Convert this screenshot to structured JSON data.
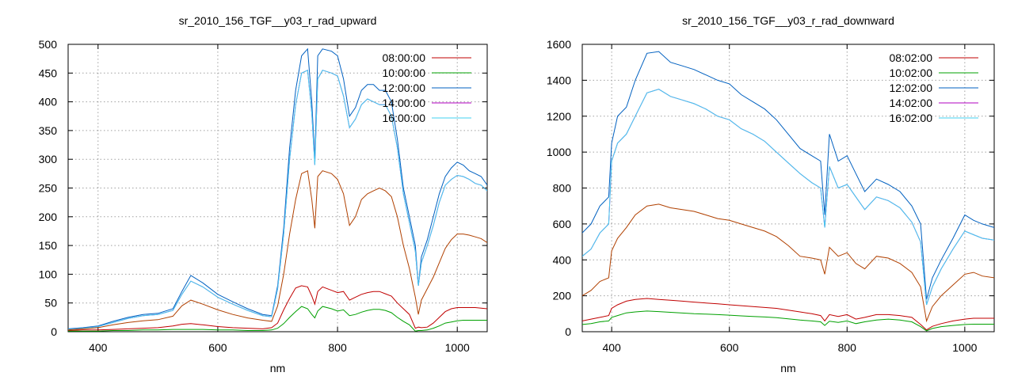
{
  "chart_data": [
    {
      "type": "line",
      "title": "sr_2010_156_TGF__y03_r_rad_upward",
      "xlabel": "nm",
      "ylabel": "",
      "xlim": [
        350,
        1050
      ],
      "ylim": [
        0,
        500
      ],
      "xticks": [
        400,
        600,
        800,
        1000
      ],
      "yticks": [
        0,
        50,
        100,
        150,
        200,
        250,
        300,
        350,
        400,
        450,
        500
      ],
      "grid": true,
      "legend_position": "top-right",
      "x": [
        350,
        375,
        400,
        425,
        450,
        475,
        500,
        525,
        540,
        555,
        575,
        600,
        625,
        650,
        675,
        690,
        700,
        710,
        720,
        730,
        740,
        750,
        757,
        762,
        767,
        775,
        790,
        800,
        810,
        820,
        830,
        840,
        850,
        860,
        870,
        880,
        890,
        900,
        910,
        920,
        930,
        935,
        940,
        950,
        960,
        970,
        980,
        990,
        1000,
        1010,
        1020,
        1030,
        1040,
        1050
      ],
      "series": [
        {
          "name": "08:00:00",
          "color": "#c00000",
          "values": [
            2,
            3,
            3,
            4,
            5,
            6,
            7,
            10,
            13,
            14,
            12,
            9,
            7,
            6,
            5,
            7,
            15,
            38,
            58,
            76,
            80,
            78,
            62,
            48,
            70,
            78,
            72,
            68,
            70,
            55,
            60,
            65,
            68,
            70,
            70,
            66,
            62,
            50,
            40,
            30,
            6,
            8,
            7,
            8,
            15,
            25,
            35,
            40,
            42,
            42,
            42,
            42,
            41,
            40
          ]
        },
        {
          "name": "10:00:00",
          "color": "#00a000",
          "values": [
            1,
            1,
            1,
            2,
            2,
            3,
            3,
            4,
            4,
            4,
            4,
            3,
            3,
            2,
            2,
            3,
            6,
            14,
            25,
            35,
            44,
            40,
            30,
            24,
            36,
            44,
            40,
            36,
            38,
            28,
            30,
            34,
            37,
            39,
            39,
            37,
            33,
            25,
            18,
            12,
            1,
            2,
            2,
            3,
            6,
            10,
            15,
            17,
            19,
            20,
            20,
            20,
            20,
            20
          ]
        },
        {
          "name": "12:00:00",
          "color": "#0060c0",
          "values": [
            5,
            7,
            10,
            18,
            25,
            30,
            32,
            40,
            70,
            98,
            85,
            65,
            52,
            40,
            30,
            28,
            80,
            180,
            320,
            420,
            480,
            492,
            400,
            300,
            480,
            492,
            488,
            480,
            440,
            375,
            390,
            420,
            430,
            430,
            420,
            420,
            400,
            335,
            250,
            200,
            150,
            80,
            130,
            160,
            200,
            240,
            270,
            285,
            295,
            290,
            280,
            275,
            270,
            255
          ]
        },
        {
          "name": "14:00:00",
          "color": "#b000c0",
          "values": [
            4,
            6,
            9,
            16,
            23,
            28,
            30,
            37,
            65,
            88,
            78,
            60,
            48,
            37,
            28,
            26,
            75,
            170,
            300,
            395,
            450,
            455,
            380,
            290,
            440,
            455,
            450,
            445,
            410,
            355,
            370,
            395,
            405,
            400,
            395,
            395,
            375,
            320,
            240,
            190,
            140,
            80,
            120,
            150,
            185,
            225,
            255,
            265,
            272,
            270,
            265,
            258,
            255,
            245
          ]
        },
        {
          "name": "16:00:00",
          "color": "#40d0f0",
          "values": [
            4,
            6,
            9,
            16,
            23,
            28,
            30,
            37,
            65,
            88,
            78,
            60,
            48,
            37,
            28,
            26,
            75,
            170,
            300,
            395,
            450,
            455,
            380,
            290,
            440,
            455,
            450,
            445,
            410,
            355,
            370,
            395,
            405,
            400,
            395,
            395,
            375,
            320,
            240,
            190,
            140,
            80,
            120,
            150,
            185,
            225,
            255,
            265,
            272,
            270,
            265,
            258,
            255,
            245
          ]
        },
        {
          "name": "",
          "color": "#b04000",
          "values": [
            3,
            5,
            7,
            12,
            16,
            19,
            21,
            27,
            45,
            55,
            48,
            38,
            30,
            24,
            20,
            18,
            45,
            100,
            170,
            230,
            275,
            280,
            230,
            180,
            270,
            280,
            275,
            265,
            240,
            185,
            200,
            230,
            240,
            245,
            250,
            245,
            235,
            200,
            150,
            110,
            60,
            30,
            55,
            75,
            95,
            120,
            145,
            160,
            170,
            170,
            168,
            165,
            162,
            155
          ]
        }
      ]
    },
    {
      "type": "line",
      "title": "sr_2010_156_TGF__y03_r_rad_downward",
      "xlabel": "nm",
      "ylabel": "",
      "xlim": [
        350,
        1050
      ],
      "ylim": [
        0,
        1600
      ],
      "xticks": [
        400,
        600,
        800,
        1000
      ],
      "yticks": [
        0,
        200,
        400,
        600,
        800,
        1000,
        1200,
        1400,
        1600
      ],
      "grid": true,
      "legend_position": "top-right",
      "x": [
        350,
        365,
        380,
        395,
        400,
        410,
        425,
        440,
        460,
        480,
        500,
        520,
        540,
        560,
        580,
        600,
        620,
        640,
        660,
        680,
        700,
        720,
        740,
        755,
        762,
        770,
        785,
        800,
        815,
        830,
        850,
        870,
        890,
        910,
        925,
        935,
        945,
        960,
        980,
        1000,
        1015,
        1030,
        1050
      ],
      "series": [
        {
          "name": "08:02:00",
          "color": "#c00000",
          "values": [
            60,
            70,
            80,
            90,
            130,
            150,
            170,
            180,
            185,
            180,
            175,
            170,
            165,
            160,
            155,
            150,
            145,
            140,
            135,
            130,
            120,
            110,
            100,
            90,
            60,
            95,
            85,
            95,
            70,
            80,
            95,
            95,
            90,
            80,
            40,
            10,
            30,
            45,
            60,
            70,
            75,
            75,
            75
          ]
        },
        {
          "name": "10:02:00",
          "color": "#00a000",
          "values": [
            40,
            45,
            55,
            60,
            80,
            90,
            105,
            110,
            115,
            112,
            108,
            104,
            100,
            98,
            95,
            92,
            88,
            85,
            82,
            78,
            72,
            65,
            60,
            55,
            35,
            58,
            52,
            60,
            45,
            55,
            65,
            70,
            65,
            55,
            28,
            5,
            18,
            28,
            35,
            40,
            42,
            42,
            42
          ]
        },
        {
          "name": "12:02:00",
          "color": "#0060c0",
          "values": [
            550,
            600,
            700,
            750,
            1050,
            1200,
            1250,
            1400,
            1550,
            1560,
            1500,
            1480,
            1460,
            1430,
            1400,
            1380,
            1320,
            1280,
            1240,
            1180,
            1100,
            1020,
            980,
            950,
            650,
            1100,
            950,
            980,
            880,
            780,
            850,
            820,
            780,
            700,
            600,
            180,
            300,
            400,
            520,
            650,
            620,
            600,
            580
          ]
        },
        {
          "name": "14:02:00",
          "color": "#b000c0",
          "values": [
            420,
            460,
            550,
            600,
            950,
            1050,
            1100,
            1200,
            1330,
            1350,
            1310,
            1290,
            1270,
            1240,
            1200,
            1180,
            1130,
            1100,
            1060,
            1000,
            940,
            880,
            830,
            800,
            580,
            920,
            800,
            820,
            750,
            680,
            750,
            730,
            690,
            610,
            500,
            150,
            250,
            350,
            460,
            560,
            540,
            520,
            510
          ]
        },
        {
          "name": "16:02:00",
          "color": "#40d0f0",
          "values": [
            420,
            460,
            550,
            600,
            950,
            1050,
            1100,
            1200,
            1330,
            1350,
            1310,
            1290,
            1270,
            1240,
            1200,
            1180,
            1130,
            1100,
            1060,
            1000,
            940,
            880,
            830,
            800,
            580,
            920,
            800,
            820,
            750,
            680,
            750,
            730,
            690,
            610,
            500,
            150,
            250,
            350,
            460,
            560,
            540,
            520,
            510
          ]
        },
        {
          "name": "",
          "color": "#b04000",
          "values": [
            200,
            230,
            280,
            300,
            450,
            520,
            580,
            650,
            700,
            710,
            690,
            680,
            670,
            650,
            630,
            620,
            600,
            580,
            560,
            530,
            480,
            420,
            410,
            400,
            320,
            470,
            420,
            440,
            380,
            350,
            420,
            410,
            380,
            330,
            250,
            60,
            140,
            200,
            260,
            320,
            330,
            310,
            300
          ]
        }
      ]
    }
  ]
}
